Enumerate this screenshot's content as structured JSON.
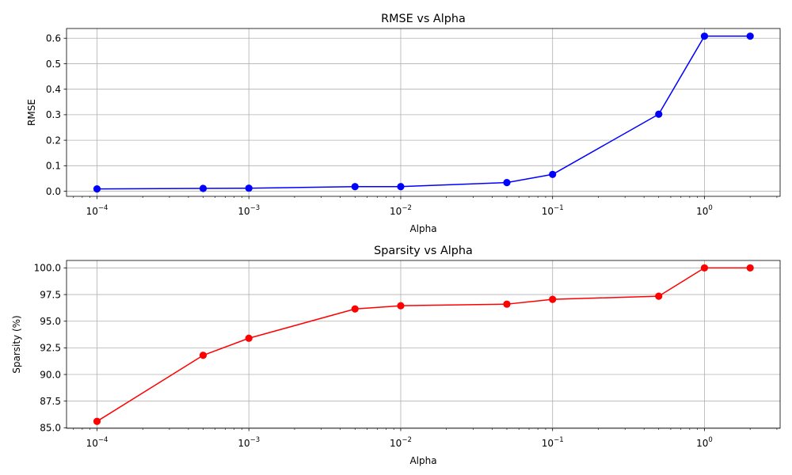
{
  "chart_data": [
    {
      "type": "line",
      "title": "RMSE vs Alpha",
      "xlabel": "Alpha",
      "ylabel": "RMSE",
      "xscale": "log",
      "xlim": [
        6.3e-05,
        3.15
      ],
      "ylim": [
        -0.02,
        0.638
      ],
      "grid": true,
      "color": "#0000ff",
      "x": [
        0.0001,
        0.0005,
        0.001,
        0.005,
        0.01,
        0.05,
        0.1,
        0.5,
        1,
        2
      ],
      "values": [
        0.009,
        0.011,
        0.012,
        0.018,
        0.018,
        0.034,
        0.066,
        0.302,
        0.608,
        0.608
      ],
      "yticks": [
        0.0,
        0.1,
        0.2,
        0.3,
        0.4,
        0.5,
        0.6
      ],
      "ytick_labels": [
        "0.0",
        "0.1",
        "0.2",
        "0.3",
        "0.4",
        "0.5",
        "0.6"
      ],
      "xticks": [
        0.0001,
        0.001,
        0.01,
        0.1,
        1
      ],
      "xtick_labels": [
        {
          "base": "10",
          "exp": "−4"
        },
        {
          "base": "10",
          "exp": "−3"
        },
        {
          "base": "10",
          "exp": "−2"
        },
        {
          "base": "10",
          "exp": "−1"
        },
        {
          "base": "10",
          "exp": "0"
        }
      ]
    },
    {
      "type": "line",
      "title": "Sparsity vs Alpha",
      "xlabel": "Alpha",
      "ylabel": "Sparsity (%)",
      "xscale": "log",
      "xlim": [
        6.3e-05,
        3.15
      ],
      "ylim": [
        84.95,
        100.7
      ],
      "grid": true,
      "color": "#ff0000",
      "x": [
        0.0001,
        0.0005,
        0.001,
        0.005,
        0.01,
        0.05,
        0.1,
        0.5,
        1,
        2
      ],
      "values": [
        85.6,
        91.8,
        93.4,
        96.15,
        96.45,
        96.6,
        97.05,
        97.35,
        100.0,
        100.0
      ],
      "yticks": [
        85.0,
        87.5,
        90.0,
        92.5,
        95.0,
        97.5,
        100.0
      ],
      "ytick_labels": [
        "85.0",
        "87.5",
        "90.0",
        "92.5",
        "95.0",
        "97.5",
        "100.0"
      ],
      "xticks": [
        0.0001,
        0.001,
        0.01,
        0.1,
        1
      ],
      "xtick_labels": [
        {
          "base": "10",
          "exp": "−4"
        },
        {
          "base": "10",
          "exp": "−3"
        },
        {
          "base": "10",
          "exp": "−2"
        },
        {
          "base": "10",
          "exp": "−1"
        },
        {
          "base": "10",
          "exp": "0"
        }
      ]
    }
  ]
}
